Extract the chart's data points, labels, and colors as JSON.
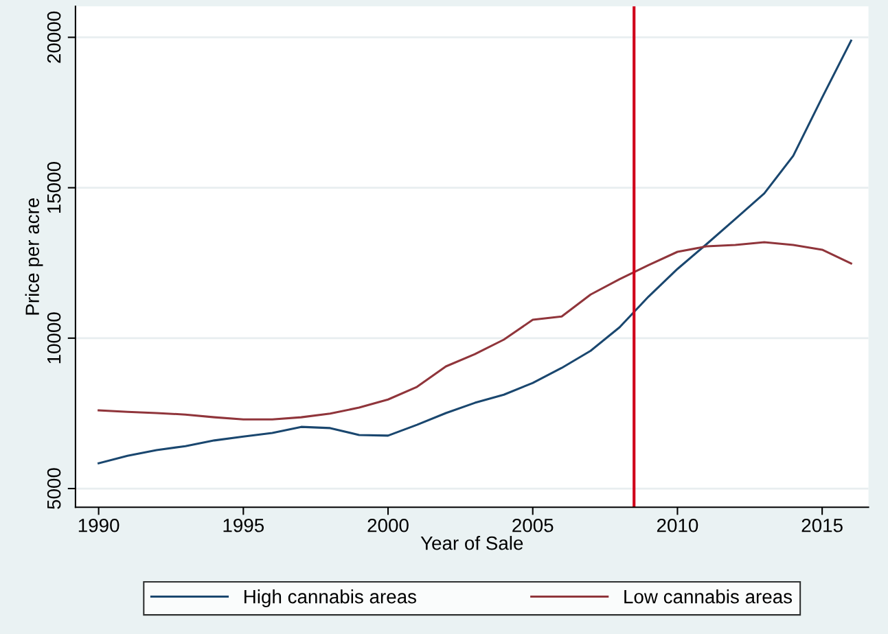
{
  "chart_data": {
    "type": "line",
    "xlabel": "Year of Sale",
    "ylabel": "Price per acre",
    "x": [
      1990,
      1991,
      1992,
      1993,
      1994,
      1995,
      1996,
      1997,
      1998,
      1999,
      2000,
      2001,
      2002,
      2003,
      2004,
      2005,
      2006,
      2007,
      2008,
      2009,
      2010,
      2011,
      2012,
      2013,
      2014,
      2015,
      2016
    ],
    "series": [
      {
        "name": "High cannabis areas",
        "color": "#1a476f",
        "values": [
          5840,
          6090,
          6280,
          6410,
          6600,
          6730,
          6850,
          7050,
          7010,
          6780,
          6760,
          7120,
          7510,
          7850,
          8120,
          8510,
          9010,
          9580,
          10360,
          11380,
          12300,
          13120,
          13960,
          14810,
          16060,
          18000,
          19890
        ]
      },
      {
        "name": "Low cannabis areas",
        "color": "#90353b",
        "values": [
          7600,
          7550,
          7510,
          7460,
          7370,
          7300,
          7300,
          7370,
          7490,
          7690,
          7960,
          8380,
          9060,
          9470,
          9950,
          10610,
          10720,
          11450,
          11960,
          12430,
          12870,
          13050,
          13100,
          13190,
          13100,
          12940,
          12480
        ]
      }
    ],
    "xlim": [
      1989.2,
      2016.6
    ],
    "xticks": [
      1990,
      1995,
      2000,
      2005,
      2010,
      2015
    ],
    "ylim": [
      4380,
      21030
    ],
    "yticks": [
      5000,
      10000,
      15000,
      20000
    ],
    "ref_lines": [
      {
        "axis": "x",
        "value": 2008.5,
        "color": "#d0021b",
        "line_style": "solid"
      }
    ],
    "grid": "y",
    "legend": "bottom",
    "marker": "none",
    "line_style": "solid"
  }
}
